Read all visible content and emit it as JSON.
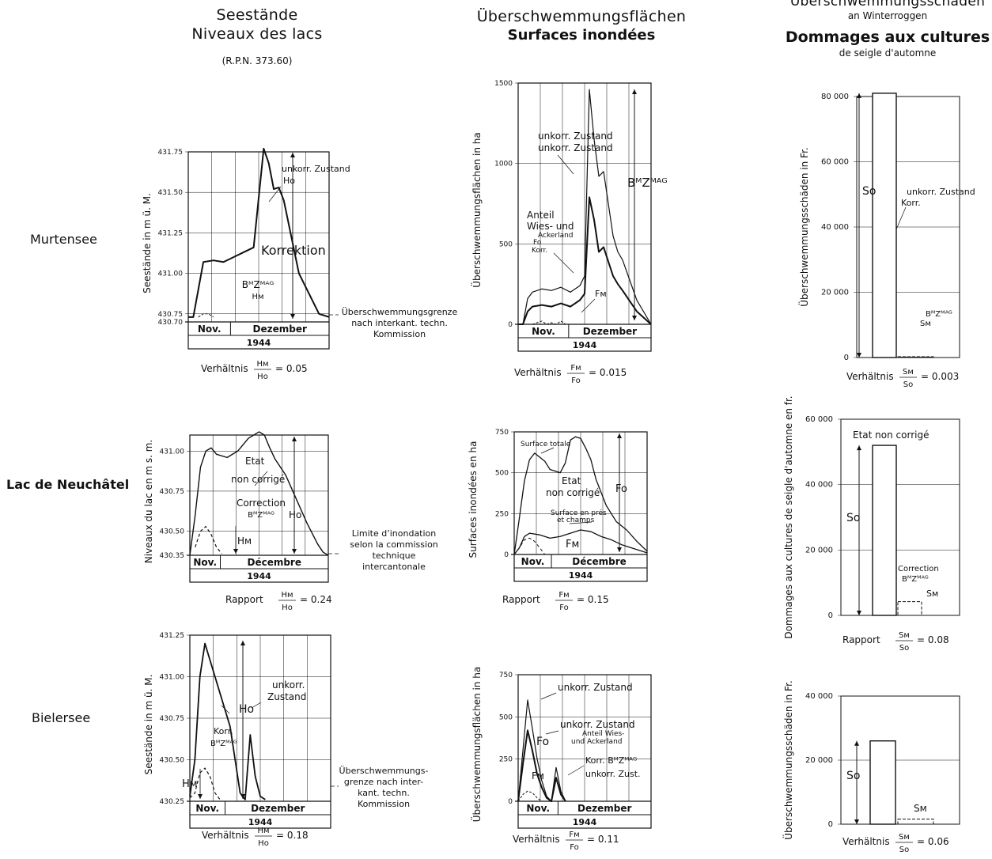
{
  "columns": {
    "levels": {
      "title_de": "Seestände",
      "title_fr": "Niveaux des lacs",
      "note": "(R.P.N. 373.60)"
    },
    "areas": {
      "title_de": "Überschwemmungsflächen",
      "title_fr": "Surfaces inondées"
    },
    "damages": {
      "title_de": "Überschwemmungsschäden",
      "sub_de": "an Winterroggen",
      "title_fr": "Dommages aux cultures",
      "sub_fr": "de seigle d'automne"
    }
  },
  "rows": [
    {
      "lake": "Murtensee",
      "bold": false
    },
    {
      "lake": "Lac de Neuchâtel",
      "bold": true
    },
    {
      "lake": "Bielersee",
      "bold": false
    }
  ],
  "chart_data": [
    {
      "id": "murten-levels",
      "type": "line",
      "ylabel": "Seestände in m ü. M.",
      "yticks": [
        "431.75",
        "431.50",
        "431.25",
        "431.00",
        "430.75",
        "430.70"
      ],
      "ylim": [
        430.7,
        431.75
      ],
      "x_periods": [
        "Nov.",
        "Dezember"
      ],
      "year": "1944",
      "series": [
        {
          "name": "unkorr. Zustand",
          "x": [
            0,
            1,
            3,
            5,
            7,
            9,
            11,
            13,
            15,
            16,
            17,
            18,
            19,
            20,
            21,
            22,
            26,
            28
          ],
          "y": [
            430.73,
            430.73,
            431.07,
            431.08,
            431.07,
            431.1,
            431.13,
            431.16,
            431.77,
            431.68,
            431.52,
            431.53,
            431.45,
            431.3,
            431.15,
            431.0,
            430.75,
            430.73
          ]
        },
        {
          "name": "Korrektion BᴹZᴹᴬᴳ",
          "x": [
            2,
            3,
            4,
            5
          ],
          "y": [
            430.73,
            430.75,
            430.75,
            430.73
          ]
        }
      ],
      "labels": [
        "unkorr. Zustand",
        "Ho",
        "Korrektion",
        "BᴹZᴹᴬᴳ",
        "Hᴍ"
      ],
      "threshold_note": "Überschwemmungsgrenze nach interkant. techn. Kommission",
      "ratio": {
        "prefix": "Verhältnis",
        "num": "Hᴍ",
        "den": "Ho",
        "value": "= 0.05"
      }
    },
    {
      "id": "murten-areas",
      "type": "line",
      "ylabel": "Überschwemmungsflächen in ha",
      "yticks": [
        "1500",
        "1000",
        "500",
        "0"
      ],
      "ylim": [
        0,
        1500
      ],
      "x_periods": [
        "Nov.",
        "Dezember"
      ],
      "year": "1944",
      "series": [
        {
          "name": "unkorr. Zustand",
          "x": [
            0,
            1,
            2,
            3,
            5,
            7,
            9,
            11,
            13,
            14,
            15,
            16,
            17,
            18,
            20,
            21,
            22,
            25,
            28
          ],
          "y": [
            0,
            0,
            160,
            200,
            220,
            210,
            230,
            200,
            240,
            300,
            1460,
            1150,
            920,
            950,
            550,
            450,
            400,
            150,
            0
          ]
        },
        {
          "name": "unkorr. Zustand Anteil Wies- und Ackerland",
          "x": [
            0,
            1,
            2,
            3,
            5,
            7,
            9,
            11,
            13,
            14,
            15,
            16,
            17,
            18,
            20,
            21,
            22,
            25,
            28
          ],
          "y": [
            0,
            0,
            80,
            110,
            120,
            110,
            130,
            110,
            150,
            190,
            790,
            650,
            450,
            480,
            300,
            250,
            210,
            80,
            0
          ]
        },
        {
          "name": "Korr. BᴹZᴹᴬᴳ",
          "x": [
            3,
            5,
            6,
            7,
            8,
            9,
            10,
            12
          ],
          "y": [
            0,
            20,
            0,
            10,
            0,
            20,
            0,
            0
          ]
        }
      ],
      "labels": [
        "unkorr. Zustand",
        "unkorr. Zustand",
        "Anteil",
        "Wies- und",
        "Ackerland",
        "Fo",
        "Korr.",
        "BᴹZᴹᴬᴳ",
        "Fᴍ"
      ],
      "ratio": {
        "prefix": "Verhältnis",
        "num": "Fᴍ",
        "den": "Fo",
        "value": "= 0.015"
      }
    },
    {
      "id": "murten-damages",
      "type": "bar",
      "ylabel": "Überschwemmungsschäden in Fr.",
      "yticks": [
        "80 000",
        "60 000",
        "40 000",
        "20 000",
        "0"
      ],
      "ylim": [
        0,
        80000
      ],
      "categories": [
        "unkorr. Zustand",
        "Korr. BᴹZᴹᴬᴳ"
      ],
      "values": [
        81000,
        240
      ],
      "labels": [
        "So",
        "unkorr. Zustand",
        "Korr.",
        "BᴹZᴹᴬᴳ",
        "Sᴍ"
      ],
      "ratio": {
        "prefix": "Verhältnis",
        "num": "Sᴍ",
        "den": "So",
        "value": "= 0.003"
      }
    },
    {
      "id": "neuchatel-levels",
      "type": "line",
      "ylabel": "Niveaux du lac en m s. m.",
      "yticks": [
        "431.00",
        "430.75",
        "430.50",
        "430.35"
      ],
      "ylim": [
        430.35,
        431.1
      ],
      "x_periods": [
        "Nov.",
        "Décembre"
      ],
      "year": "1944",
      "series": [
        {
          "name": "Etat non corrigé",
          "x": [
            0,
            1,
            2,
            3,
            4,
            5,
            7,
            9,
            11,
            13,
            14,
            15,
            16,
            18,
            20,
            22,
            24,
            25,
            26
          ],
          "y": [
            430.35,
            430.6,
            430.9,
            431.0,
            431.02,
            430.98,
            430.96,
            431.0,
            431.08,
            431.12,
            431.1,
            431.02,
            430.95,
            430.85,
            430.7,
            430.55,
            430.42,
            430.37,
            430.35
          ]
        },
        {
          "name": "Correction BᴹZᴹᴬᴳ",
          "x": [
            1,
            2,
            3,
            4,
            5,
            6
          ],
          "y": [
            430.4,
            430.5,
            430.53,
            430.48,
            430.4,
            430.36
          ]
        }
      ],
      "labels": [
        "Etat",
        "non corrigé",
        "Correction",
        "BᴹZᴹᴬᴳ",
        "Ho",
        "Hᴍ"
      ],
      "threshold_note": "Limite d'inondation selon la commission technique intercantonale",
      "ratio": {
        "prefix": "Rapport",
        "num": "Hᴍ",
        "den": "Ho",
        "value": "= 0.24"
      }
    },
    {
      "id": "neuchatel-areas",
      "type": "line",
      "ylabel": "Surfaces inondées en ha",
      "yticks": [
        "750",
        "500",
        "250",
        "0"
      ],
      "ylim": [
        0,
        750
      ],
      "x_periods": [
        "Nov.",
        "Décembre"
      ],
      "year": "1944",
      "series": [
        {
          "name": "Surface totale",
          "x": [
            0,
            1,
            2,
            3,
            4,
            6,
            7,
            9,
            10,
            11,
            12,
            13,
            14,
            15,
            16,
            18,
            20,
            22,
            24,
            26
          ],
          "y": [
            0,
            220,
            450,
            580,
            620,
            570,
            520,
            500,
            560,
            700,
            720,
            710,
            650,
            580,
            460,
            300,
            200,
            150,
            80,
            20
          ]
        },
        {
          "name": "Surface en prés et champs",
          "x": [
            0,
            1,
            2,
            3,
            5,
            7,
            9,
            11,
            13,
            15,
            17,
            19,
            21,
            23,
            25,
            26
          ],
          "y": [
            0,
            40,
            110,
            130,
            120,
            100,
            110,
            130,
            150,
            140,
            110,
            90,
            60,
            40,
            20,
            10
          ]
        },
        {
          "name": "Correction BᴹZᴹᴬᴳ",
          "x": [
            0,
            1,
            2,
            3,
            4,
            5,
            6
          ],
          "y": [
            0,
            40,
            90,
            100,
            80,
            40,
            0
          ]
        }
      ],
      "labels": [
        "Surface totale",
        "Etat",
        "non corrigé",
        "Surface en prés",
        "et champs",
        "Fo",
        "Fᴍ"
      ],
      "ratio": {
        "prefix": "Rapport",
        "num": "Fᴍ",
        "den": "Fo",
        "value": "= 0.15"
      }
    },
    {
      "id": "neuchatel-damages",
      "type": "bar",
      "ylabel": "Dommages aux cultures de seigle d'automne en fr.",
      "yticks": [
        "60 000",
        "40 000",
        "20 000",
        "0"
      ],
      "ylim": [
        0,
        60000
      ],
      "categories": [
        "Etat non corrigé",
        "Correction BᴹZᴹᴬᴳ"
      ],
      "values": [
        52000,
        4200
      ],
      "labels": [
        "Etat non corrigé",
        "So",
        "Correction",
        "BᴹZᴹᴬᴳ",
        "Sᴍ"
      ],
      "ratio": {
        "prefix": "Rapport",
        "num": "Sᴍ",
        "den": "So",
        "value": "= 0.08"
      }
    },
    {
      "id": "biel-levels",
      "type": "line",
      "ylabel": "Seestände in m ü. M.",
      "yticks": [
        "431.25",
        "431.00",
        "430.75",
        "430.50",
        "430.25"
      ],
      "ylim": [
        430.25,
        431.25
      ],
      "x_periods": [
        "Nov.",
        "Dezember"
      ],
      "year": "1944",
      "series": [
        {
          "name": "unkorr. Zustand",
          "x": [
            0,
            1,
            2,
            3,
            5,
            7,
            8,
            9,
            10,
            11,
            12,
            13,
            14,
            15
          ],
          "y": [
            430.28,
            430.5,
            431.0,
            431.2,
            431.0,
            430.8,
            430.7,
            430.5,
            430.3,
            430.26,
            430.65,
            430.4,
            430.28,
            430.26
          ]
        },
        {
          "name": "Korr. BᴹZᴹᴬᴳ",
          "x": [
            0,
            1,
            2,
            3,
            4,
            5,
            6
          ],
          "y": [
            430.27,
            430.3,
            430.42,
            430.45,
            430.4,
            430.3,
            430.26
          ]
        }
      ],
      "labels": [
        "unkorr.",
        "Zustand",
        "Ho",
        "Korr.",
        "BᴹZᴹᴬᴳ",
        "Hᴍ"
      ],
      "threshold_note": "Überschwemmungs-grenze nach inter-kant. techn. Kommission",
      "ratio": {
        "prefix": "Verhältnis",
        "num": "Hᴍ",
        "den": "Ho",
        "value": "= 0.18"
      }
    },
    {
      "id": "biel-areas",
      "type": "line",
      "ylabel": "Überschwemmungsflächen in ha",
      "yticks": [
        "750",
        "500",
        "250",
        "0"
      ],
      "ylim": [
        0,
        750
      ],
      "x_periods": [
        "Nov.",
        "Dezember"
      ],
      "year": "1944",
      "series": [
        {
          "name": "unkorr. Zustand",
          "x": [
            0,
            1,
            2,
            3,
            4,
            5,
            6,
            7,
            8,
            9,
            10
          ],
          "y": [
            0,
            300,
            600,
            430,
            250,
            120,
            30,
            0,
            200,
            60,
            0
          ]
        },
        {
          "name": "unkorr. Zustand Anteil Wies- und Ackerland",
          "x": [
            0,
            1,
            2,
            3,
            4,
            5,
            6,
            7,
            8,
            9,
            10
          ],
          "y": [
            0,
            220,
            420,
            300,
            160,
            80,
            20,
            0,
            140,
            40,
            0
          ]
        },
        {
          "name": "Korr. BᴹZᴹᴬᴳ",
          "x": [
            0,
            1,
            2,
            3,
            4,
            5
          ],
          "y": [
            0,
            40,
            60,
            50,
            20,
            0
          ]
        }
      ],
      "labels": [
        "unkorr. Zustand",
        "unkorr. Zustand",
        "Anteil Wies-",
        "und Ackerland",
        "Fo",
        "Korr. BᴹZᴹᴬᴳ",
        "unkorr. Zust.",
        "Fᴍ"
      ],
      "ratio": {
        "prefix": "Verhältnis",
        "num": "Fᴍ",
        "den": "Fo",
        "value": "= 0.11"
      }
    },
    {
      "id": "biel-damages",
      "type": "bar",
      "ylabel": "Überschwemmungsschäden in Fr.",
      "yticks": [
        "40 000",
        "20 000",
        "0"
      ],
      "ylim": [
        0,
        40000
      ],
      "categories": [
        "unkorr. Zustand",
        "Korr. BᴹZᴹᴬᴳ"
      ],
      "values": [
        26000,
        1600
      ],
      "labels": [
        "So",
        "Sᴍ"
      ],
      "ratio": {
        "prefix": "Verhältnis",
        "num": "Sᴍ",
        "den": "So",
        "value": "= 0.06"
      }
    }
  ]
}
